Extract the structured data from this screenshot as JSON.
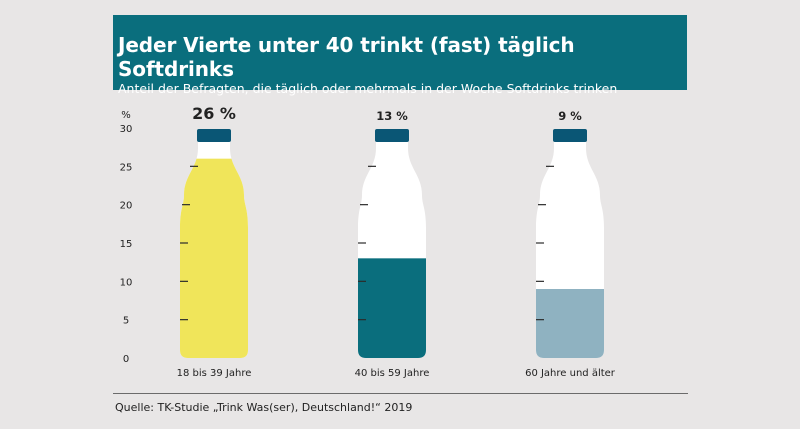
{
  "header": {
    "title": "Jeder Vierte unter 40 trinkt (fast) täglich Softdrinks",
    "subtitle": "Anteil der Befragten, die täglich oder mehrmals in der Woche Softdrinks trinken"
  },
  "source": "Quelle: TK-Studie „Trink Was(ser), Deutschland!“ 2019",
  "chart_data": {
    "type": "bar",
    "ylabel": "%",
    "ylim": [
      0,
      30
    ],
    "yticks": [
      "0",
      "5",
      "10",
      "15",
      "20",
      "25",
      "30"
    ],
    "categories": [
      "18 bis 39 Jahre",
      "40 bis 59 Jahre",
      "60 Jahre und älter"
    ],
    "values": [
      26,
      13,
      9
    ],
    "value_labels": [
      "26 %",
      "13 %",
      "9 %"
    ],
    "colors": [
      "#f0e55a",
      "#0a6e7d",
      "#8fb2c1"
    ],
    "cap_color": "#0a5675",
    "grid": false
  }
}
